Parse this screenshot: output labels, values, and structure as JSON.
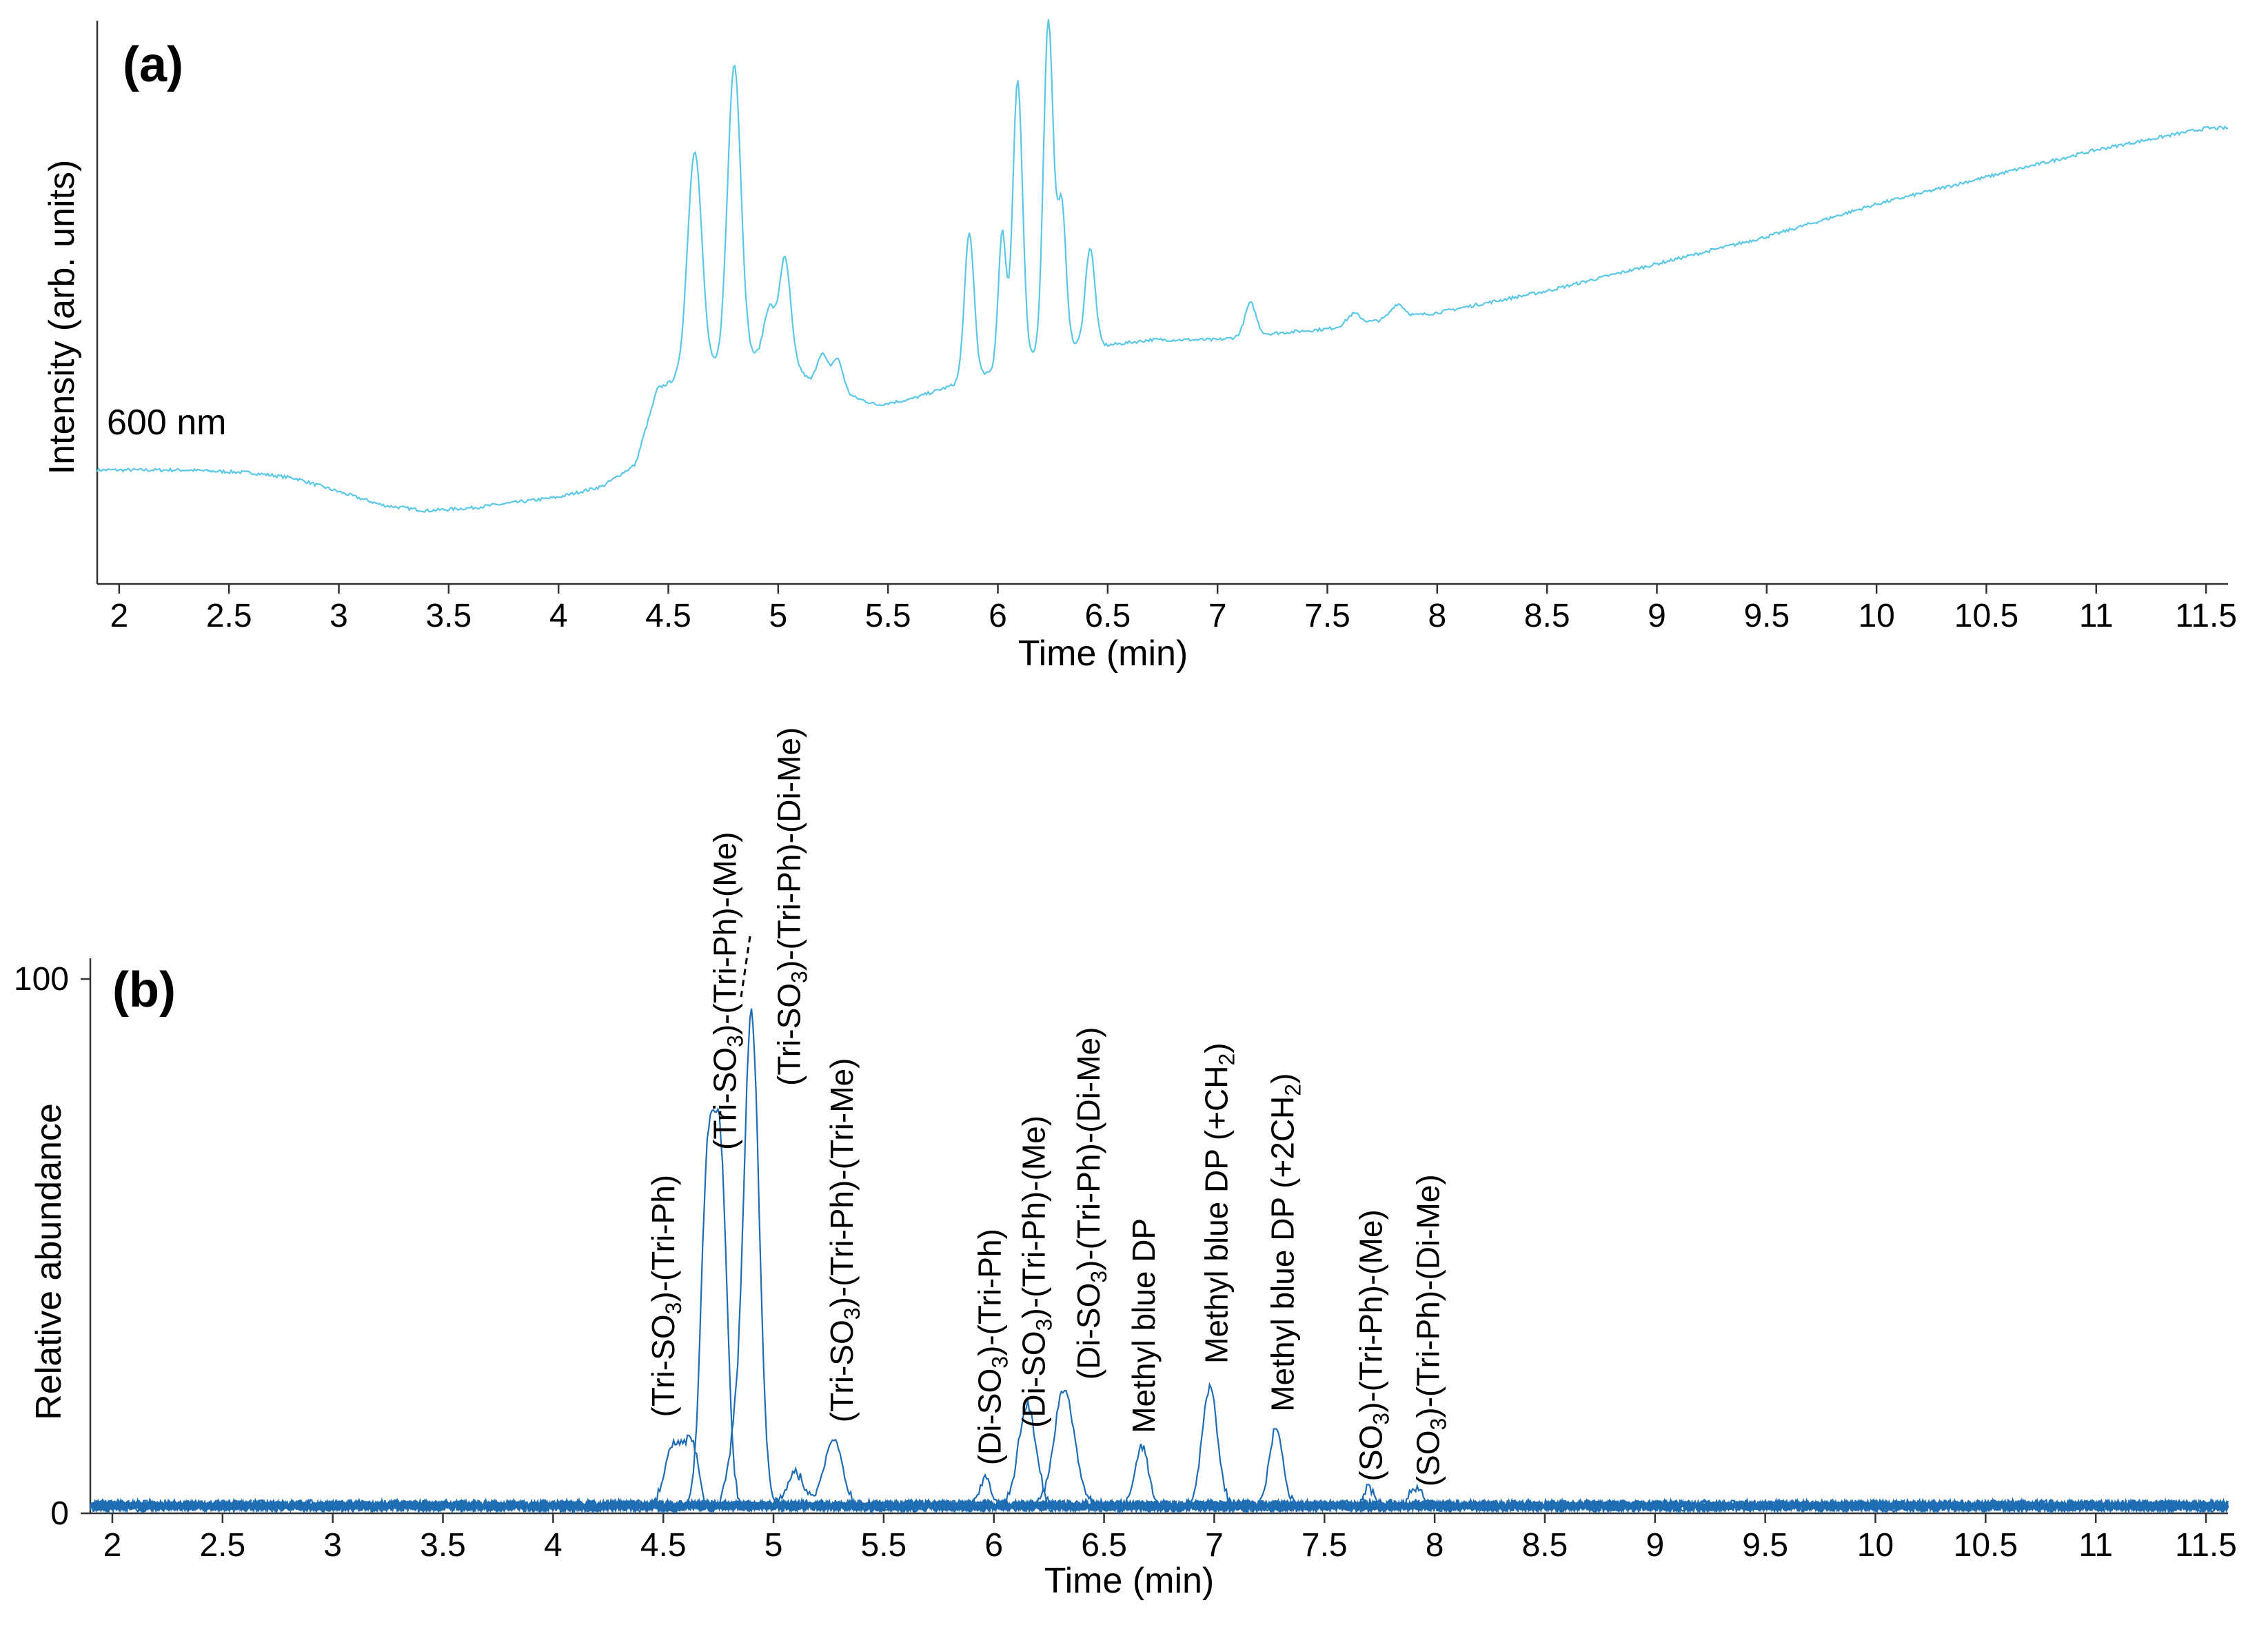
{
  "colors": {
    "uv_trace": "#5bc8e6",
    "ms_traces": "#1f6db3",
    "axis": "#333333"
  },
  "chart_data": [
    {
      "type": "line",
      "panel_label": "(a)",
      "ylabel": "Intensity (arb. units)",
      "xlabel": "Time (min)",
      "annotation": "600 nm",
      "xlim": [
        1.9,
        11.6
      ],
      "ylim": [
        0,
        100
      ],
      "yticks": false,
      "x_ticks": [
        "2",
        "2.5",
        "3",
        "3.5",
        "4",
        "4.5",
        "5",
        "5.5",
        "6",
        "6.5",
        "7",
        "7.5",
        "8",
        "8.5",
        "9",
        "9.5",
        "10",
        "10.5",
        "11",
        "11.5"
      ],
      "series": [
        {
          "baseline": [
            [
              1.9,
              21
            ],
            [
              2.3,
              21
            ],
            [
              2.6,
              20.5
            ],
            [
              2.8,
              19.5
            ],
            [
              3.0,
              17
            ],
            [
              3.2,
              14.5
            ],
            [
              3.4,
              13.5
            ],
            [
              3.6,
              14
            ],
            [
              3.8,
              15
            ],
            [
              4.0,
              16
            ],
            [
              4.2,
              18
            ],
            [
              4.35,
              22
            ],
            [
              4.45,
              36
            ],
            [
              4.55,
              38
            ],
            [
              4.7,
              40
            ],
            [
              4.9,
              42
            ],
            [
              5.05,
              42
            ],
            [
              5.15,
              37
            ],
            [
              5.3,
              35
            ],
            [
              5.45,
              33
            ],
            [
              5.6,
              34
            ],
            [
              5.75,
              36
            ],
            [
              5.9,
              38
            ],
            [
              6.1,
              41
            ],
            [
              6.3,
              44
            ],
            [
              6.5,
              44
            ],
            [
              6.7,
              45
            ],
            [
              7.0,
              45
            ],
            [
              7.2,
              46
            ],
            [
              7.5,
              47
            ],
            [
              7.8,
              49
            ],
            [
              8.0,
              50
            ],
            [
              8.5,
              54
            ],
            [
              9.0,
              59
            ],
            [
              9.5,
              64
            ],
            [
              10.0,
              70
            ],
            [
              10.5,
              75
            ],
            [
              11.0,
              80
            ],
            [
              11.5,
              84
            ],
            [
              11.6,
              84
            ]
          ],
          "peaks": [
            {
              "t": 4.62,
              "h": 41,
              "w": 0.032
            },
            {
              "t": 4.8,
              "h": 55,
              "w": 0.03
            },
            {
              "t": 4.96,
              "h": 9,
              "w": 0.025
            },
            {
              "t": 5.03,
              "h": 18,
              "w": 0.025
            },
            {
              "t": 5.2,
              "h": 6,
              "w": 0.025
            },
            {
              "t": 5.27,
              "h": 6,
              "w": 0.025
            },
            {
              "t": 5.87,
              "h": 27,
              "w": 0.022
            },
            {
              "t": 6.02,
              "h": 25,
              "w": 0.018
            },
            {
              "t": 6.09,
              "h": 52,
              "w": 0.022
            },
            {
              "t": 6.23,
              "h": 61,
              "w": 0.022
            },
            {
              "t": 6.29,
              "h": 26,
              "w": 0.02
            },
            {
              "t": 6.42,
              "h": 18,
              "w": 0.022
            },
            {
              "t": 7.15,
              "h": 6,
              "w": 0.025
            },
            {
              "t": 7.62,
              "h": 2,
              "w": 0.03
            },
            {
              "t": 7.82,
              "h": 2.5,
              "w": 0.03
            }
          ]
        }
      ]
    },
    {
      "type": "line",
      "panel_label": "(b)",
      "ylabel": "Relative abundance",
      "xlabel": "Time (min)",
      "xlim": [
        1.9,
        11.6
      ],
      "ylim": [
        0,
        100
      ],
      "y_ticks": [
        0,
        100
      ],
      "x_ticks": [
        "2",
        "2.5",
        "3",
        "3.5",
        "4",
        "4.5",
        "5",
        "5.5",
        "6",
        "6.5",
        "7",
        "7.5",
        "8",
        "8.5",
        "9",
        "9.5",
        "10",
        "10.5",
        "11",
        "11.5"
      ],
      "series": [
        {
          "peaks": [
            {
              "t": 4.55,
              "h": 12,
              "w": 0.04
            },
            {
              "t": 4.63,
              "h": 11,
              "w": 0.03
            }
          ]
        },
        {
          "peaks": [
            {
              "t": 4.7,
              "h": 60,
              "w": 0.03
            },
            {
              "t": 4.76,
              "h": 62,
              "w": 0.03
            }
          ]
        },
        {
          "peaks": [
            {
              "t": 4.9,
              "h": 92,
              "w": 0.035
            },
            {
              "t": 4.82,
              "h": 10,
              "w": 0.03
            }
          ]
        },
        {
          "peaks": [
            {
              "t": 5.27,
              "h": 13,
              "w": 0.04
            },
            {
              "t": 5.1,
              "h": 6,
              "w": 0.04
            }
          ]
        },
        {
          "peaks": [
            {
              "t": 5.96,
              "h": 5,
              "w": 0.03
            }
          ]
        },
        {
          "peaks": [
            {
              "t": 6.15,
              "h": 19,
              "w": 0.04
            }
          ]
        },
        {
          "peaks": [
            {
              "t": 6.32,
              "h": 22,
              "w": 0.045
            }
          ]
        },
        {
          "peaks": [
            {
              "t": 6.67,
              "h": 11,
              "w": 0.03
            }
          ]
        },
        {
          "peaks": [
            {
              "t": 6.98,
              "h": 22,
              "w": 0.035
            }
          ]
        },
        {
          "peaks": [
            {
              "t": 7.28,
              "h": 15,
              "w": 0.03
            }
          ]
        },
        {
          "peaks": [
            {
              "t": 7.7,
              "h": 4,
              "w": 0.02
            }
          ]
        },
        {
          "peaks": [
            {
              "t": 7.92,
              "h": 3.5,
              "w": 0.03
            }
          ]
        }
      ],
      "peak_labels": [
        {
          "t": 4.55,
          "h": 18,
          "lines": [
            [
              "(Tri-SO",
              "3",
              ")-(Tri-Ph)"
            ]
          ]
        },
        {
          "t": 4.83,
          "h": 68,
          "lines": [
            [
              "(Tri-SO",
              "3",
              ")-(Tri-Ph)-(Me)"
            ]
          ]
        },
        {
          "t": 5.12,
          "h": 80,
          "lines": [
            [
              "(Tri-SO",
              "3",
              ")-(Tri-Ph)-(Di-Me)"
            ]
          ]
        },
        {
          "t": 5.36,
          "h": 17,
          "lines": [
            [
              "(Tri-SO",
              "3",
              ")-(Tri-Ph)-(Tri-Me)"
            ]
          ]
        },
        {
          "t": 6.03,
          "h": 9,
          "lines": [
            [
              "(Di-SO",
              "3",
              ")-(Tri-Ph)"
            ]
          ]
        },
        {
          "t": 6.23,
          "h": 16,
          "lines": [
            [
              "(Di-SO",
              "3",
              ")-(Tri-Ph)-(Me)"
            ]
          ]
        },
        {
          "t": 6.48,
          "h": 25,
          "lines": [
            [
              "(Di-SO",
              "3",
              ")-(Tri-Ph)-(Di-Me)"
            ]
          ]
        },
        {
          "t": 6.73,
          "h": 15,
          "lines": [
            [
              "Methyl blue DP"
            ]
          ]
        },
        {
          "t": 7.06,
          "h": 28,
          "lines": [
            [
              "Methyl blue DP (+CH",
              "2",
              ")"
            ]
          ]
        },
        {
          "t": 7.36,
          "h": 19,
          "lines": [
            [
              "Methyl blue DP (+2CH",
              "2",
              ")"
            ]
          ]
        },
        {
          "t": 7.76,
          "h": 6,
          "lines": [
            [
              "(SO",
              "3",
              ")-(Tri-Ph)-(Me)"
            ]
          ]
        },
        {
          "t": 8.02,
          "h": 5,
          "lines": [
            [
              "(SO",
              "3",
              ")-(Tri-Ph)-(Di-Me)"
            ]
          ]
        }
      ]
    }
  ]
}
